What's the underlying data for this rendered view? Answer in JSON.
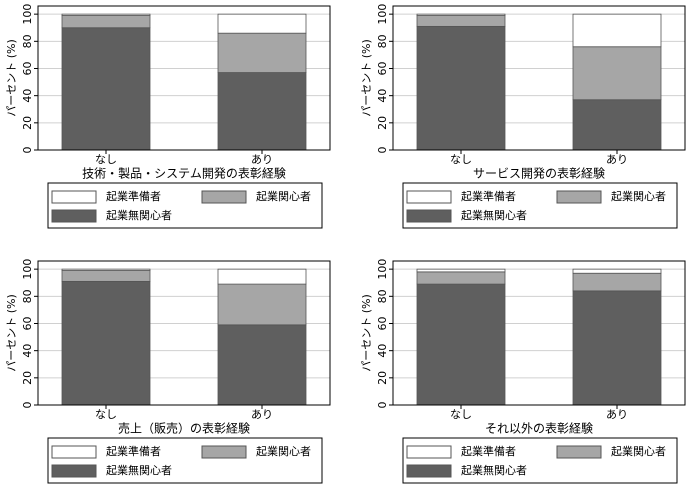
{
  "chart_data": [
    {
      "type": "bar",
      "stacked": true,
      "title": "技術・製品・システム開発の表彰経験",
      "y_label": "パーセント (%)",
      "categories": [
        "なし",
        "あり"
      ],
      "series": [
        {
          "name": "起業無関心者",
          "color": "#5f5f5f",
          "values": [
            90,
            57
          ]
        },
        {
          "name": "起業関心者",
          "color": "#a6a6a6",
          "values": [
            9,
            29
          ]
        },
        {
          "name": "起業準備者",
          "color": "#ffffff",
          "values": [
            1,
            14
          ]
        }
      ],
      "ylim": [
        0,
        106
      ],
      "yticks": [
        0,
        20,
        40,
        60,
        80,
        100
      ],
      "grid": true
    },
    {
      "type": "bar",
      "stacked": true,
      "title": "サービス開発の表彰経験",
      "y_label": "パーセント (%)",
      "categories": [
        "なし",
        "あり"
      ],
      "series": [
        {
          "name": "起業無関心者",
          "color": "#5f5f5f",
          "values": [
            91,
            37
          ]
        },
        {
          "name": "起業関心者",
          "color": "#a6a6a6",
          "values": [
            8,
            39
          ]
        },
        {
          "name": "起業準備者",
          "color": "#ffffff",
          "values": [
            1,
            24
          ]
        }
      ],
      "ylim": [
        0,
        106
      ],
      "yticks": [
        0,
        20,
        40,
        60,
        80,
        100
      ],
      "grid": true
    },
    {
      "type": "bar",
      "stacked": true,
      "title": "売上（販売）の表彰経験",
      "y_label": "パーセント (%)",
      "categories": [
        "なし",
        "あり"
      ],
      "series": [
        {
          "name": "起業無関心者",
          "color": "#5f5f5f",
          "values": [
            91,
            59
          ]
        },
        {
          "name": "起業関心者",
          "color": "#a6a6a6",
          "values": [
            8,
            30
          ]
        },
        {
          "name": "起業準備者",
          "color": "#ffffff",
          "values": [
            1,
            11
          ]
        }
      ],
      "ylim": [
        0,
        106
      ],
      "yticks": [
        0,
        20,
        40,
        60,
        80,
        100
      ],
      "grid": true
    },
    {
      "type": "bar",
      "stacked": true,
      "title": "それ以外の表彰経験",
      "y_label": "パーセント (%)",
      "categories": [
        "なし",
        "あり"
      ],
      "series": [
        {
          "name": "起業無関心者",
          "color": "#5f5f5f",
          "values": [
            89,
            84
          ]
        },
        {
          "name": "起業関心者",
          "color": "#a6a6a6",
          "values": [
            9,
            13
          ]
        },
        {
          "name": "起業準備者",
          "color": "#ffffff",
          "values": [
            2,
            3
          ]
        }
      ],
      "ylim": [
        0,
        106
      ],
      "yticks": [
        0,
        20,
        40,
        60,
        80,
        100
      ],
      "grid": true
    }
  ]
}
